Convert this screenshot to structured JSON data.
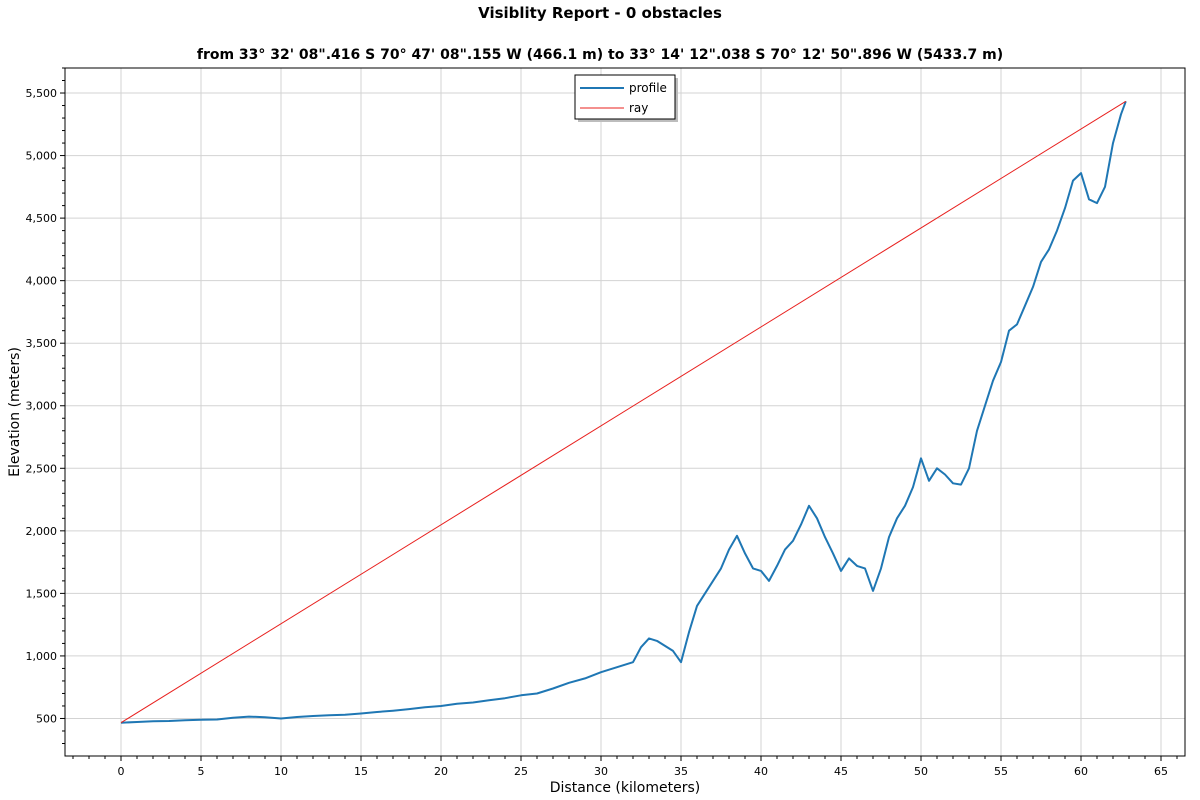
{
  "title": "Visiblity Report - 0 obstacles",
  "subtitle": "from 33° 32' 08\".416 S 70° 47' 08\".155 W (466.1 m) to 33° 14' 12\".038 S 70° 12' 50\".896 W (5433.7 m)",
  "chart_data": {
    "type": "line",
    "title": "Visiblity Report - 0 obstacles",
    "subtitle": "from 33° 32' 08\".416 S 70° 47' 08\".155 W (466.1 m) to 33° 14' 12\".038 S 70° 12' 50\".896 W (5433.7 m)",
    "xlabel": "Distance (kilometers)",
    "ylabel": "Elevation (meters)",
    "xlim": [
      -3.5,
      66.5
    ],
    "ylim": [
      200,
      5700
    ],
    "xticks": [
      0,
      5,
      10,
      15,
      20,
      25,
      30,
      35,
      40,
      45,
      50,
      55,
      60,
      65
    ],
    "yticks": [
      500,
      1000,
      1500,
      2000,
      2500,
      3000,
      3500,
      4000,
      4500,
      5000,
      5500
    ],
    "grid": true,
    "legend_position": "top-center",
    "series": [
      {
        "name": "profile",
        "color": "#1f77b4",
        "x": [
          0,
          1,
          2,
          3,
          4,
          5,
          6,
          7,
          8,
          9,
          10,
          11,
          12,
          13,
          14,
          15,
          16,
          17,
          18,
          19,
          20,
          21,
          22,
          23,
          24,
          25,
          26,
          27,
          28,
          29,
          30,
          31,
          32,
          32.5,
          33,
          33.5,
          34,
          34.5,
          35,
          35.5,
          36,
          36.5,
          37,
          37.5,
          38,
          38.5,
          39,
          39.5,
          40,
          40.5,
          41,
          41.5,
          42,
          42.5,
          43,
          43.5,
          44,
          44.5,
          45,
          45.5,
          46,
          46.5,
          47,
          47.5,
          48,
          48.5,
          49,
          49.5,
          50,
          50.5,
          51,
          51.5,
          52,
          52.5,
          53,
          53.5,
          54,
          54.5,
          55,
          55.5,
          56,
          56.5,
          57,
          57.5,
          58,
          58.5,
          59,
          59.5,
          60,
          60.5,
          61,
          61.5,
          62,
          62.5,
          62.8
        ],
        "y": [
          466,
          472,
          478,
          480,
          486,
          490,
          492,
          505,
          515,
          510,
          500,
          512,
          520,
          525,
          530,
          540,
          552,
          562,
          575,
          590,
          600,
          618,
          628,
          645,
          662,
          685,
          700,
          740,
          785,
          820,
          870,
          910,
          950,
          1070,
          1140,
          1120,
          1080,
          1040,
          950,
          1190,
          1400,
          1500,
          1600,
          1700,
          1850,
          1960,
          1820,
          1700,
          1680,
          1600,
          1720,
          1850,
          1920,
          2050,
          2200,
          2100,
          1950,
          1820,
          1680,
          1780,
          1720,
          1700,
          1520,
          1700,
          1950,
          2100,
          2200,
          2350,
          2580,
          2400,
          2500,
          2450,
          2380,
          2370,
          2500,
          2800,
          3000,
          3200,
          3350,
          3600,
          3650,
          3800,
          3950,
          4150,
          4250,
          4400,
          4580,
          4800,
          4860,
          4650,
          4620,
          4750,
          5100,
          5330,
          5434
        ]
      },
      {
        "name": "ray",
        "color": "#e8201e",
        "x": [
          0,
          62.8
        ],
        "y": [
          466.1,
          5433.7
        ]
      }
    ]
  }
}
